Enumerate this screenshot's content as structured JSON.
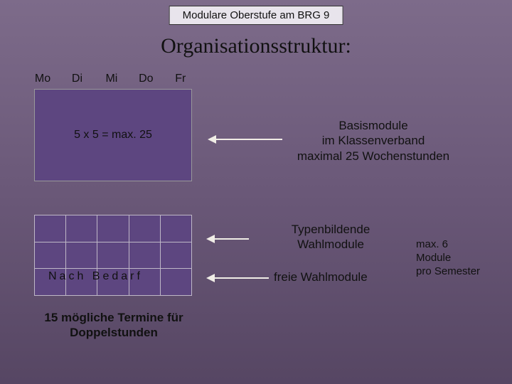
{
  "header": {
    "title": "Modulare Oberstufe am BRG 9"
  },
  "main_title": "Organisationsstruktur:",
  "days": [
    "Mo",
    "Di",
    "Mi",
    "Do",
    "Fr"
  ],
  "grid_top": {
    "label": "5 x 5 = max. 25",
    "bg_color": "#5d4680",
    "border_color": "#999"
  },
  "grid_bottom": {
    "rows": 3,
    "cols": 5,
    "bg_color": "#5d4680",
    "border_color": "#bfb8c7"
  },
  "nach_bedarf": "Nach Bedarf",
  "termine": "15 mögliche Termine für Doppelstunden",
  "annotations": {
    "basismodule_l1": "Basismodule",
    "basismodule_l2": "im Klassenverband",
    "basismodule_l3": "maximal 25 Wochenstunden",
    "typen_l1": "Typenbildende",
    "typen_l2": "Wahlmodule",
    "freie": "freie Wahlmodule",
    "max6_l1": "max. 6",
    "max6_l2": "Module",
    "max6_l3": "pro Semester"
  },
  "style": {
    "arrow_color": "#f0ede6",
    "bg_gradient_top": "#7d6b8a",
    "bg_gradient_mid": "#6a5878",
    "bg_gradient_bot": "#564663",
    "header_bg": "#e8e4ec",
    "text_color": "#111",
    "title_fontsize": 30,
    "body_fontsize": 17,
    "small_fontsize": 15
  }
}
